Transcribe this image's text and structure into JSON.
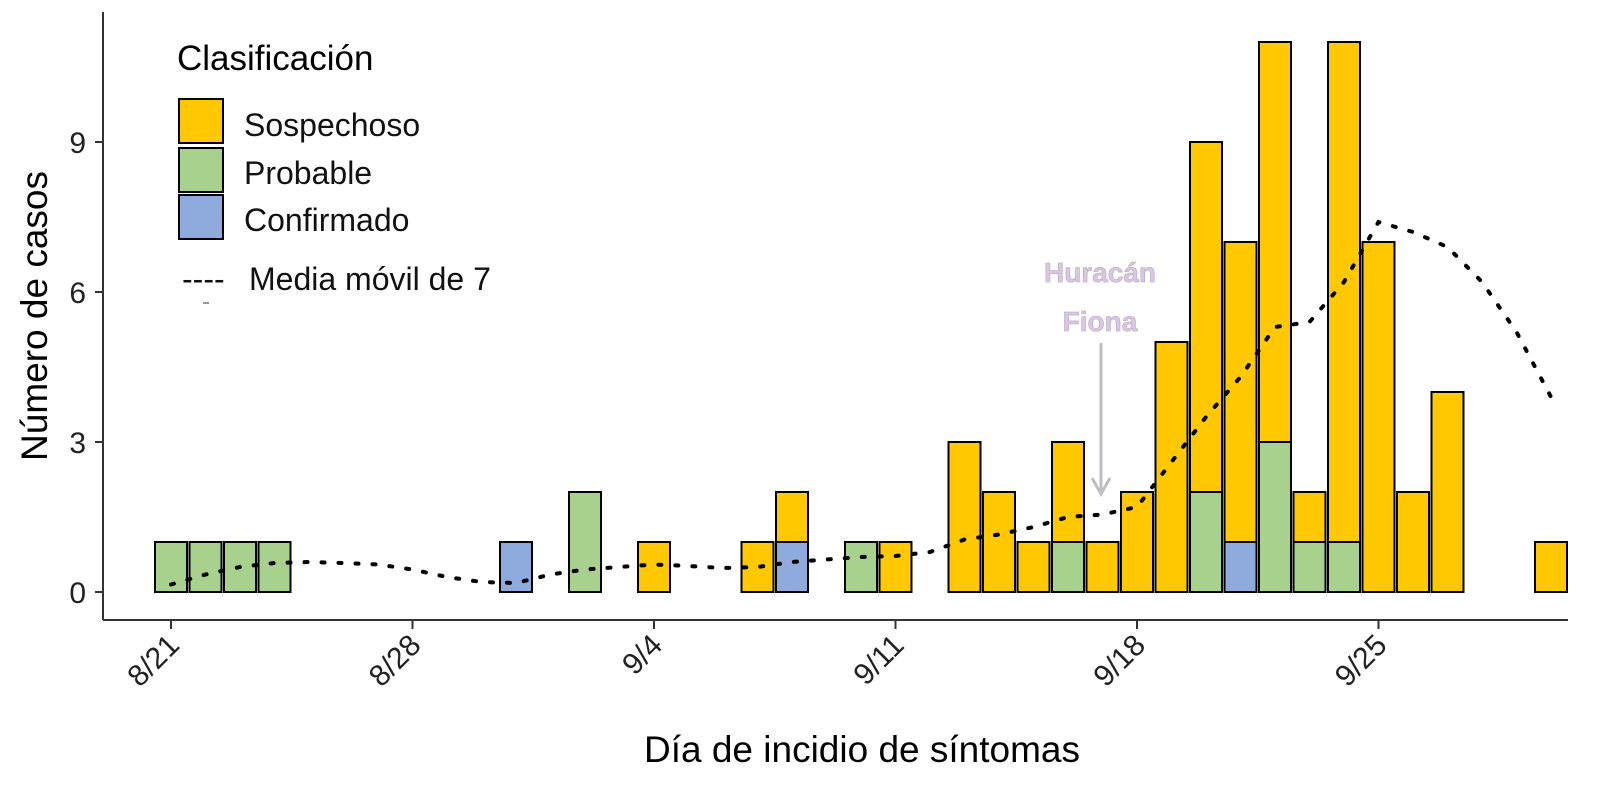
{
  "chart_data": {
    "type": "bar",
    "stacked": true,
    "xlabel": "Día de incidio de síntomas",
    "ylabel": "Número de casos",
    "x_start": "8/21",
    "x_tick_labels": [
      "8/21",
      "8/28",
      "9/4",
      "9/11",
      "9/18",
      "9/25"
    ],
    "y_ticks": [
      0,
      3,
      6,
      9
    ],
    "ylim": [
      0,
      11
    ],
    "grid": false,
    "legend": {
      "title": "Clasificación",
      "position": "top-left",
      "line_label": "Media móvil de 7",
      "line_glyph": "----"
    },
    "categories": [
      "8/21",
      "8/22",
      "8/23",
      "8/24",
      "8/31",
      "9/2",
      "9/4",
      "9/7",
      "9/8",
      "9/10",
      "9/11",
      "9/13",
      "9/14",
      "9/15",
      "9/16",
      "9/17",
      "9/18",
      "9/19",
      "9/20",
      "9/21",
      "9/22",
      "9/23",
      "9/24",
      "9/25",
      "9/26",
      "9/27",
      "9/30"
    ],
    "series": [
      {
        "name": "Confirmado",
        "color": "#8faadc",
        "values": [
          0,
          0,
          0,
          0,
          1,
          0,
          0,
          0,
          1,
          0,
          0,
          0,
          0,
          0,
          0,
          0,
          0,
          0,
          0,
          1,
          0,
          0,
          0,
          0,
          0,
          0,
          0
        ]
      },
      {
        "name": "Probable",
        "color": "#a9d18e",
        "values": [
          1,
          1,
          1,
          1,
          0,
          2,
          0,
          0,
          0,
          1,
          0,
          0,
          0,
          0,
          1,
          0,
          0,
          0,
          2,
          0,
          3,
          1,
          1,
          0,
          0,
          0,
          0
        ]
      },
      {
        "name": "Sospechoso",
        "color": "#ffc800",
        "values": [
          0,
          0,
          0,
          0,
          0,
          0,
          1,
          1,
          1,
          0,
          1,
          3,
          2,
          1,
          2,
          1,
          2,
          5,
          7,
          6,
          8,
          1,
          10,
          7,
          2,
          4,
          1
        ]
      }
    ],
    "moving_average": {
      "name": "Media móvil de 7",
      "dates": [
        "8/21",
        "8/22",
        "8/23",
        "8/24",
        "8/25",
        "8/26",
        "8/27",
        "8/28",
        "8/29",
        "8/30",
        "8/31",
        "9/1",
        "9/2",
        "9/3",
        "9/4",
        "9/5",
        "9/6",
        "9/7",
        "9/8",
        "9/9",
        "9/10",
        "9/11",
        "9/12",
        "9/13",
        "9/14",
        "9/15",
        "9/16",
        "9/17",
        "9/18",
        "9/19",
        "9/20",
        "9/21",
        "9/22",
        "9/23",
        "9/24",
        "9/25",
        "9/26",
        "9/27",
        "9/28",
        "9/29",
        "9/30"
      ],
      "values": [
        0.15,
        0.35,
        0.5,
        0.58,
        0.6,
        0.58,
        0.55,
        0.45,
        0.3,
        0.2,
        0.18,
        0.35,
        0.45,
        0.5,
        0.55,
        0.52,
        0.48,
        0.5,
        0.6,
        0.65,
        0.7,
        0.72,
        0.8,
        1.05,
        1.15,
        1.3,
        1.5,
        1.55,
        1.7,
        2.6,
        3.5,
        4.3,
        5.3,
        5.4,
        6.2,
        7.4,
        7.2,
        6.9,
        6.2,
        5.2,
        3.9
      ]
    },
    "annotation": {
      "lines": [
        "Huracán",
        "Fiona"
      ],
      "date": "9/17",
      "arrow_to": 1.9
    }
  }
}
